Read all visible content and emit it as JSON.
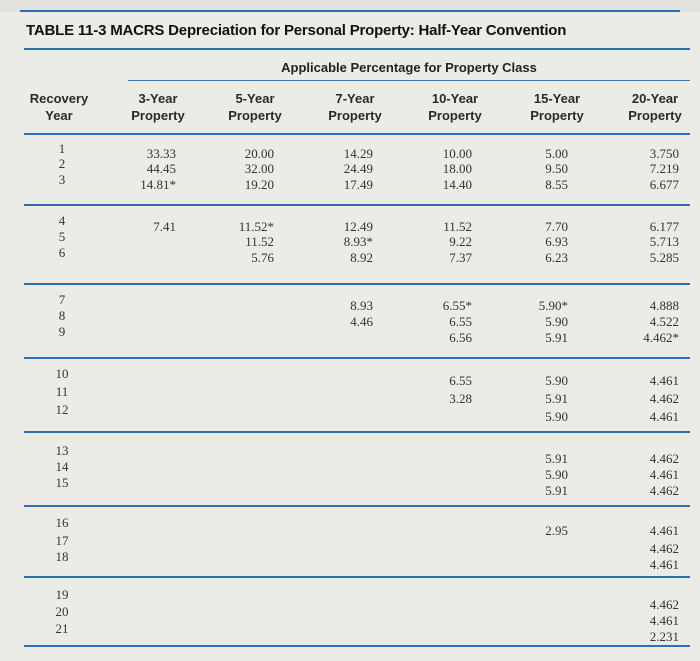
{
  "table": {
    "title": "TABLE 11-3 MACRS Depreciation for Personal Property: Half-Year Convention",
    "group_header": "Applicable Percentage for Property Class",
    "recovery_header": [
      "Recovery",
      "Year"
    ],
    "columns": [
      {
        "line1": "3-Year",
        "line2": "Property"
      },
      {
        "line1": "5-Year",
        "line2": "Property"
      },
      {
        "line1": "7-Year",
        "line2": "Property"
      },
      {
        "line1": "10-Year",
        "line2": "Property"
      },
      {
        "line1": "15-Year",
        "line2": "Property"
      },
      {
        "line1": "20-Year",
        "line2": "Property"
      }
    ],
    "rows": [
      {
        "year": "1",
        "values": [
          "33.33",
          "20.00",
          "14.29",
          "10.00",
          "5.00",
          "3.750"
        ]
      },
      {
        "year": "2",
        "values": [
          "44.45",
          "32.00",
          "24.49",
          "18.00",
          "9.50",
          "7.219"
        ]
      },
      {
        "year": "3",
        "values": [
          "14.81*",
          "19.20",
          "17.49",
          "14.40",
          "8.55",
          "6.677"
        ]
      },
      {
        "year": "4",
        "values": [
          "7.41",
          "11.52*",
          "12.49",
          "11.52",
          "7.70",
          "6.177"
        ]
      },
      {
        "year": "5",
        "values": [
          "",
          "11.52",
          "8.93*",
          "9.22",
          "6.93",
          "5.713"
        ]
      },
      {
        "year": "6",
        "values": [
          "",
          "5.76",
          "8.92",
          "7.37",
          "6.23",
          "5.285"
        ]
      },
      {
        "year": "7",
        "values": [
          "",
          "",
          "8.93",
          "6.55*",
          "5.90*",
          "4.888"
        ]
      },
      {
        "year": "8",
        "values": [
          "",
          "",
          "4.46",
          "6.55",
          "5.90",
          "4.522"
        ]
      },
      {
        "year": "9",
        "values": [
          "",
          "",
          "",
          "6.56",
          "5.91",
          "4.462*"
        ]
      },
      {
        "year": "10",
        "values": [
          "",
          "",
          "",
          "6.55",
          "5.90",
          "4.461"
        ]
      },
      {
        "year": "11",
        "values": [
          "",
          "",
          "",
          "3.28",
          "5.91",
          "4.462"
        ]
      },
      {
        "year": "12",
        "values": [
          "",
          "",
          "",
          "",
          "5.90",
          "4.461"
        ]
      },
      {
        "year": "13",
        "values": [
          "",
          "",
          "",
          "",
          "5.91",
          "4.462"
        ]
      },
      {
        "year": "14",
        "values": [
          "",
          "",
          "",
          "",
          "5.90",
          "4.461"
        ]
      },
      {
        "year": "15",
        "values": [
          "",
          "",
          "",
          "",
          "5.91",
          "4.462"
        ]
      },
      {
        "year": "16",
        "values": [
          "",
          "",
          "",
          "",
          "2.95",
          "4.461"
        ]
      },
      {
        "year": "17",
        "values": [
          "",
          "",
          "",
          "",
          "",
          "4.462"
        ]
      },
      {
        "year": "18",
        "values": [
          "",
          "",
          "",
          "",
          "",
          "4.461"
        ]
      },
      {
        "year": "19",
        "values": [
          "",
          "",
          "",
          "",
          "",
          "4.462"
        ]
      },
      {
        "year": "20",
        "values": [
          "",
          "",
          "",
          "",
          "",
          "4.461"
        ]
      },
      {
        "year": "21",
        "values": [
          "",
          "",
          "",
          "",
          "",
          "2.231"
        ]
      }
    ]
  },
  "colors": {
    "accent": "#2f6eb3",
    "background": "#ecebe6"
  }
}
